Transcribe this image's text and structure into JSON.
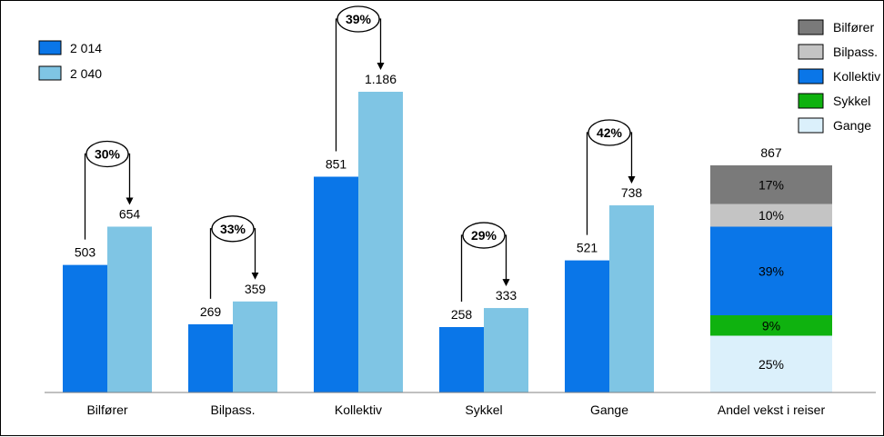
{
  "chart_data": [
    {
      "type": "bar",
      "categories": [
        "Bilfører",
        "Bilpass.",
        "Kollektiv",
        "Sykkel",
        "Gange"
      ],
      "series": [
        {
          "name": "2 014",
          "color": "#0a76e8",
          "values": [
            503,
            269,
            851,
            258,
            521
          ],
          "labels": [
            "503",
            "269",
            "851",
            "258",
            "521"
          ]
        },
        {
          "name": "2 040",
          "color": "#7fc5e4",
          "values": [
            654,
            359,
            1186,
            333,
            738
          ],
          "labels": [
            "654",
            "359",
            "1.186",
            "333",
            "738"
          ]
        }
      ],
      "growth_labels": [
        "30%",
        "33%",
        "39%",
        "29%",
        "42%"
      ],
      "ylim": [
        0,
        1400
      ],
      "grid": false,
      "legend": "top-left"
    },
    {
      "type": "bar",
      "stacked": true,
      "categories": [
        "Andel vekst i reiser"
      ],
      "total_label": "867",
      "series": [
        {
          "name": "Gange",
          "color": "#dbf0fb",
          "value": 25,
          "label": "25%"
        },
        {
          "name": "Sykkel",
          "color": "#0fb20f",
          "value": 9,
          "label": "9%"
        },
        {
          "name": "Kollektiv",
          "color": "#0a76e8",
          "value": 39,
          "label": "39%"
        },
        {
          "name": "Bilpass.",
          "color": "#c4c4c4",
          "value": 10,
          "label": "10%"
        },
        {
          "name": "Bilfører",
          "color": "#7a7a7a",
          "value": 17,
          "label": "17%"
        }
      ],
      "legend_order": [
        "Bilfører",
        "Bilpass.",
        "Kollektiv",
        "Sykkel",
        "Gange"
      ],
      "legend": "top-right"
    }
  ]
}
